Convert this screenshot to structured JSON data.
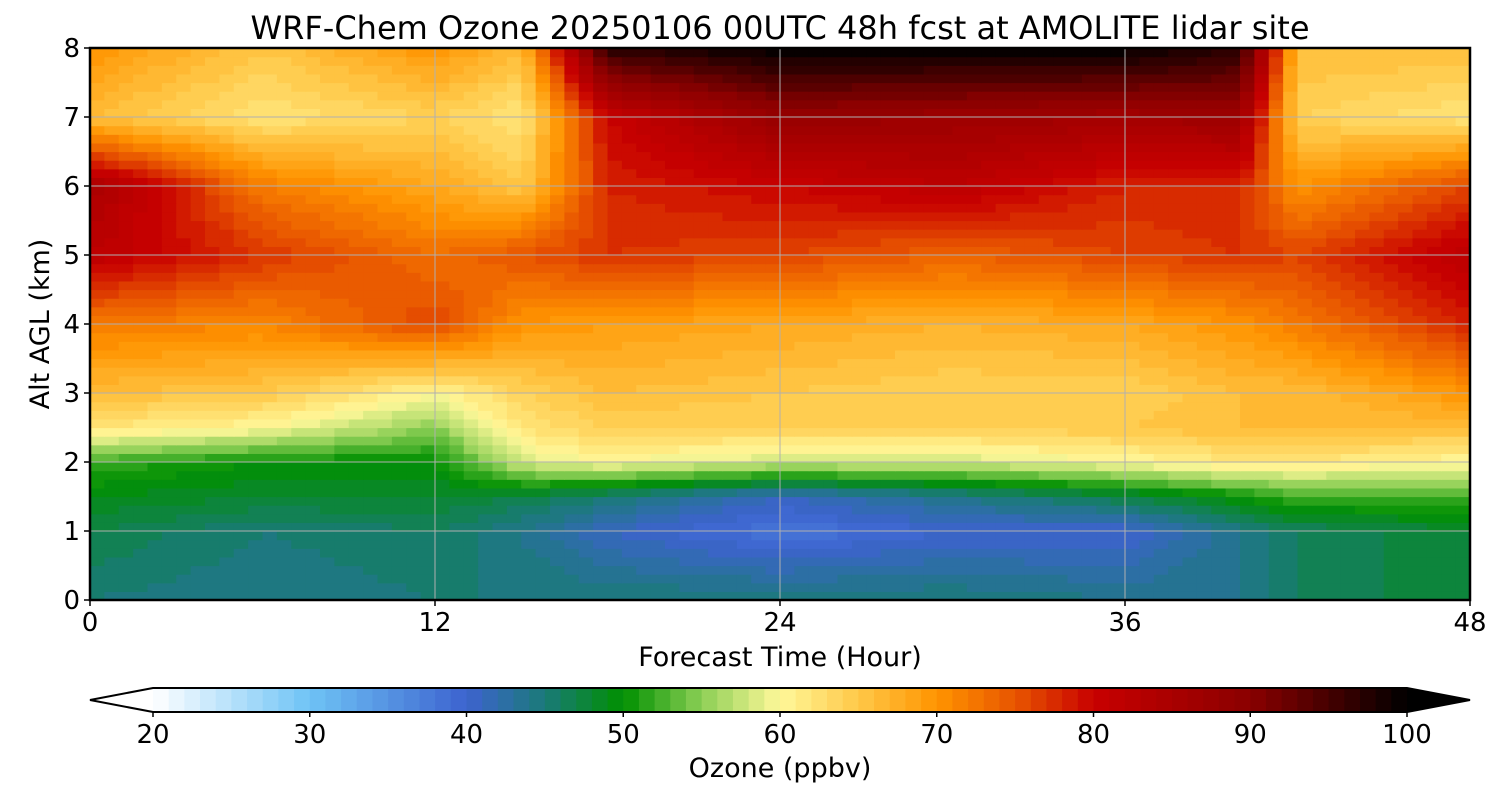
{
  "chart_data": {
    "type": "heatmap",
    "title": "WRF-Chem Ozone  20250106 00UTC 48h fcst at AMOLITE lidar site",
    "xlabel": "Forecast Time (Hour)",
    "ylabel": "Alt AGL (km)",
    "xlim": [
      0,
      48
    ],
    "ylim": [
      0,
      8
    ],
    "x_ticks": [
      "0",
      "12",
      "24",
      "36",
      "48"
    ],
    "y_ticks": [
      "0",
      "1",
      "2",
      "3",
      "4",
      "5",
      "6",
      "7",
      "8"
    ],
    "grid": true,
    "colorbar": {
      "label": "Ozone  (ppbv)",
      "range": [
        20,
        100
      ],
      "ticks": [
        "20",
        "30",
        "40",
        "50",
        "60",
        "70",
        "80",
        "90",
        "100"
      ],
      "extend": "both",
      "step": 1,
      "stops": [
        {
          "v": 20,
          "c": "#ffffff"
        },
        {
          "v": 30,
          "c": "#6ec3f5"
        },
        {
          "v": 40,
          "c": "#3d63cf"
        },
        {
          "v": 45,
          "c": "#1a7a78"
        },
        {
          "v": 50,
          "c": "#009000"
        },
        {
          "v": 55,
          "c": "#8ccf55"
        },
        {
          "v": 60,
          "c": "#fff89a"
        },
        {
          "v": 65,
          "c": "#ffc848"
        },
        {
          "v": 70,
          "c": "#ff9400"
        },
        {
          "v": 75,
          "c": "#e85500"
        },
        {
          "v": 80,
          "c": "#c80000"
        },
        {
          "v": 90,
          "c": "#8a0000"
        },
        {
          "v": 100,
          "c": "#000000"
        }
      ]
    },
    "times": [
      0,
      6,
      12,
      15,
      18,
      24,
      30,
      36,
      40,
      42,
      48
    ],
    "altitudes": [
      0,
      1,
      1.5,
      2,
      2.5,
      3,
      4,
      5,
      6,
      7,
      8
    ],
    "values": [
      [
        45,
        44,
        45,
        45,
        45,
        45,
        45,
        44,
        44,
        46,
        48
      ],
      [
        47,
        45,
        46,
        44,
        41,
        38,
        40,
        40,
        44,
        46,
        48
      ],
      [
        49,
        48,
        48,
        47,
        45,
        41,
        44,
        47,
        50,
        52,
        52
      ],
      [
        52,
        50,
        50,
        58,
        60,
        58,
        58,
        60,
        62,
        62,
        60
      ],
      [
        62,
        60,
        55,
        62,
        64,
        64,
        64,
        65,
        66,
        66,
        66
      ],
      [
        66,
        65,
        60,
        64,
        66,
        65,
        64,
        64,
        66,
        66,
        70
      ],
      [
        72,
        71,
        76,
        70,
        69,
        68,
        67,
        68,
        70,
        72,
        78
      ],
      [
        82,
        77,
        73,
        75,
        77,
        76,
        74,
        76,
        77,
        76,
        82
      ],
      [
        85,
        72,
        68,
        65,
        78,
        80,
        82,
        78,
        78,
        70,
        76
      ],
      [
        66,
        62,
        64,
        62,
        80,
        88,
        87,
        86,
        87,
        64,
        62
      ],
      [
        70,
        65,
        70,
        66,
        97,
        100,
        100,
        100,
        97,
        66,
        66
      ]
    ]
  }
}
